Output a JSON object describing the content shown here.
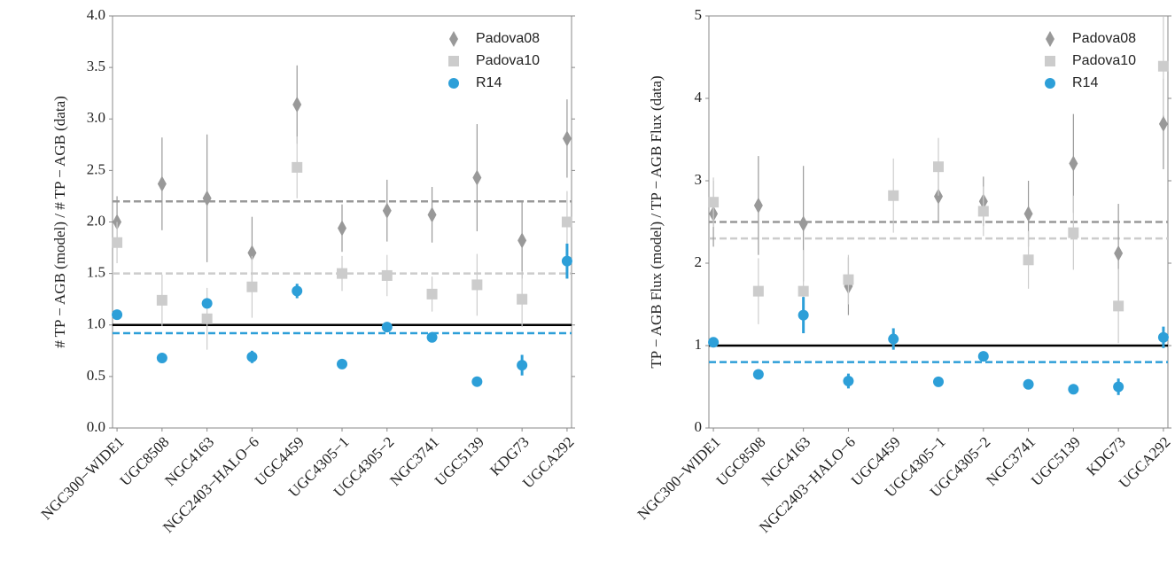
{
  "chart_data": [
    {
      "type": "scatter",
      "ylabel": "# TP − AGB (model) / # TP − AGB (data)",
      "categories": [
        "NGC300−WIDE1",
        "UGC8508",
        "NGC4163",
        "NGC2403−HALO−6",
        "UGC4459",
        "UGC4305−1",
        "UGC4305−2",
        "NGC3741",
        "UGC5139",
        "KDG73",
        "UGCA292"
      ],
      "ylim": [
        0,
        4
      ],
      "yticks": [
        {
          "value": 0,
          "label": "0.0"
        },
        0.5,
        {
          "value": 1,
          "label": "1.0"
        },
        1.5,
        {
          "value": 2,
          "label": "2.0"
        },
        2.5,
        {
          "value": 3,
          "label": "3.0"
        },
        3.5,
        {
          "value": 4,
          "label": "4.0"
        }
      ],
      "legend": "upper right",
      "series": [
        {
          "name": "Padova08",
          "color": "#999999",
          "marker": "diamond",
          "values": [
            2.0,
            2.37,
            2.23,
            1.7,
            3.14,
            1.94,
            2.11,
            2.07,
            2.43,
            1.82,
            2.81
          ],
          "errors": [
            0.25,
            0.45,
            0.62,
            0.35,
            0.38,
            0.23,
            0.3,
            0.27,
            0.52,
            0.37,
            0.38
          ]
        },
        {
          "name": "Padova10",
          "color": "#cccccc",
          "marker": "square",
          "values": [
            1.8,
            1.24,
            1.06,
            1.37,
            2.53,
            1.5,
            1.48,
            1.3,
            1.39,
            1.25,
            2.0
          ],
          "errors": [
            0.2,
            0.25,
            0.3,
            0.3,
            0.3,
            0.17,
            0.2,
            0.17,
            0.3,
            0.27,
            0.3
          ]
        },
        {
          "name": "R14",
          "color": "#2d9fd8",
          "marker": "circle",
          "values": [
            1.1,
            0.68,
            1.21,
            0.69,
            1.33,
            0.62,
            0.98,
            0.88,
            0.45,
            0.61,
            1.62
          ],
          "errors": [
            0.03,
            0.03,
            0.04,
            0.06,
            0.07,
            0.03,
            0.04,
            0.05,
            0.03,
            0.1,
            0.17
          ]
        }
      ],
      "reference_lines": [
        {
          "y": 2.2,
          "color": "#999999",
          "dashed": true
        },
        {
          "y": 1.5,
          "color": "#cccccc",
          "dashed": true
        },
        {
          "y": 0.92,
          "color": "#2d9fd8",
          "dashed": true
        },
        {
          "y": 1,
          "color": "#000000",
          "dashed": false
        }
      ]
    },
    {
      "type": "scatter",
      "ylabel": "TP − AGB Flux (model) / TP − AGB Flux (data)",
      "categories": [
        "NGC300−WIDE1",
        "UGC8508",
        "NGC4163",
        "NGC2403−HALO−6",
        "UGC4459",
        "UGC4305−1",
        "UGC4305−2",
        "NGC3741",
        "UGC5139",
        "KDG73",
        "UGCA292"
      ],
      "ylim": [
        0,
        5
      ],
      "yticks": [
        0,
        1,
        2,
        3,
        4,
        5
      ],
      "legend": "upper right",
      "series": [
        {
          "name": "Padova08",
          "color": "#999999",
          "marker": "diamond",
          "values": [
            2.6,
            2.7,
            2.48,
            1.72,
            null,
            2.81,
            2.75,
            2.6,
            3.21,
            2.12,
            3.69
          ],
          "errors": [
            0.4,
            0.6,
            0.7,
            0.35,
            null,
            0.3,
            0.3,
            0.4,
            0.6,
            0.6,
            0.55
          ]
        },
        {
          "name": "Padova10",
          "color": "#cccccc",
          "marker": "square",
          "values": [
            2.74,
            1.66,
            1.66,
            1.8,
            2.82,
            3.17,
            2.63,
            2.04,
            2.37,
            1.48,
            4.39
          ],
          "errors": [
            0.3,
            0.4,
            0.5,
            0.3,
            0.45,
            0.35,
            0.3,
            0.35,
            0.45,
            0.45,
            0.6
          ]
        },
        {
          "name": "R14",
          "color": "#2d9fd8",
          "marker": "circle",
          "values": [
            1.04,
            0.65,
            1.37,
            0.57,
            1.08,
            0.56,
            0.87,
            0.53,
            0.47,
            0.5,
            1.1
          ],
          "errors": [
            0.03,
            0.06,
            0.22,
            0.09,
            0.13,
            0.03,
            0.03,
            0.04,
            0.03,
            0.1,
            0.13
          ]
        }
      ],
      "reference_lines": [
        {
          "y": 2.5,
          "color": "#999999",
          "dashed": true
        },
        {
          "y": 2.3,
          "color": "#cccccc",
          "dashed": true
        },
        {
          "y": 0.8,
          "color": "#2d9fd8",
          "dashed": true
        },
        {
          "y": 1,
          "color": "#000000",
          "dashed": false
        }
      ]
    }
  ]
}
